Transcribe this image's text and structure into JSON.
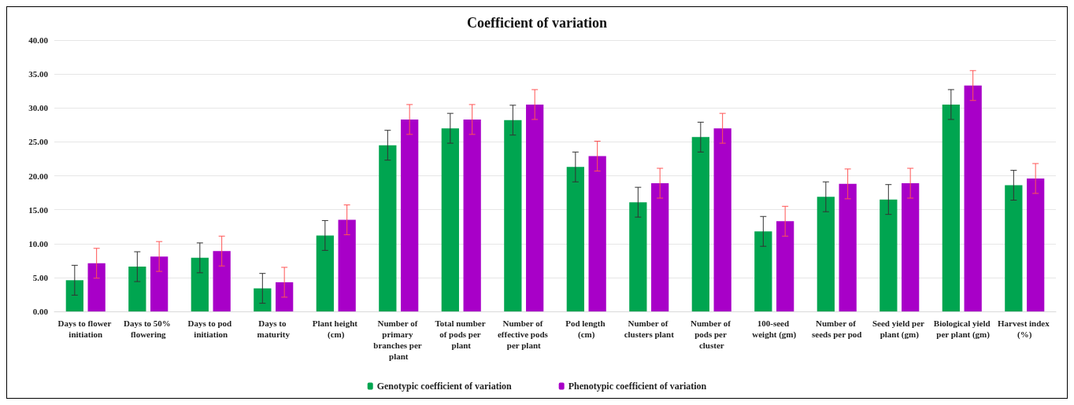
{
  "chart_data": {
    "type": "bar",
    "title": "Coefficient of variation",
    "categories": [
      "Days to flower initiation",
      "Days to 50% flowering",
      "Days to pod initiation",
      "Days to maturity",
      "Plant height (cm)",
      "Number of primary branches per plant",
      "Total number of pods per plant",
      "Number of effective pods per plant",
      "Pod length (cm)",
      "Number of clusters plant",
      "Number of pods per cluster",
      "100-seed weight (gm)",
      "Number of seeds per pod",
      "Seed yield per plant (gm)",
      "Biological yield per plant (gm)",
      "Harvest index (%)"
    ],
    "series": [
      {
        "name": "Genotypic coefficient of variation",
        "color": "#00a550",
        "values": [
          4.6,
          6.6,
          7.9,
          3.4,
          11.2,
          24.5,
          27.0,
          28.2,
          21.3,
          16.1,
          25.7,
          11.8,
          16.9,
          16.5,
          30.5,
          18.6
        ],
        "errors": [
          2.2,
          2.2,
          2.2,
          2.2,
          2.2,
          2.2,
          2.2,
          2.2,
          2.2,
          2.2,
          2.2,
          2.2,
          2.2,
          2.2,
          2.2,
          2.2
        ]
      },
      {
        "name": "Phenotypic coefficient of variation",
        "color": "#a800c8",
        "values": [
          7.1,
          8.1,
          8.9,
          4.3,
          13.5,
          28.3,
          28.3,
          30.5,
          22.9,
          18.9,
          27.0,
          13.3,
          18.8,
          18.9,
          33.3,
          19.6
        ],
        "errors": [
          2.2,
          2.2,
          2.2,
          2.2,
          2.2,
          2.2,
          2.2,
          2.2,
          2.2,
          2.2,
          2.2,
          2.2,
          2.2,
          2.2,
          2.2,
          2.2
        ]
      }
    ],
    "ylim": [
      0,
      40
    ],
    "yticks": [
      {
        "value": 0,
        "label": "0.00"
      },
      {
        "value": 5,
        "label": "5.00"
      },
      {
        "value": 10,
        "label": "10.00"
      },
      {
        "value": 15,
        "label": "15.00"
      },
      {
        "value": 20,
        "label": "20.00"
      },
      {
        "value": 25,
        "label": "25.00"
      },
      {
        "value": 30,
        "label": "30.00"
      },
      {
        "value": 35,
        "label": "35.00"
      },
      {
        "value": 40,
        "label": "40.00"
      }
    ],
    "grid": "y",
    "legend": "bottom"
  }
}
